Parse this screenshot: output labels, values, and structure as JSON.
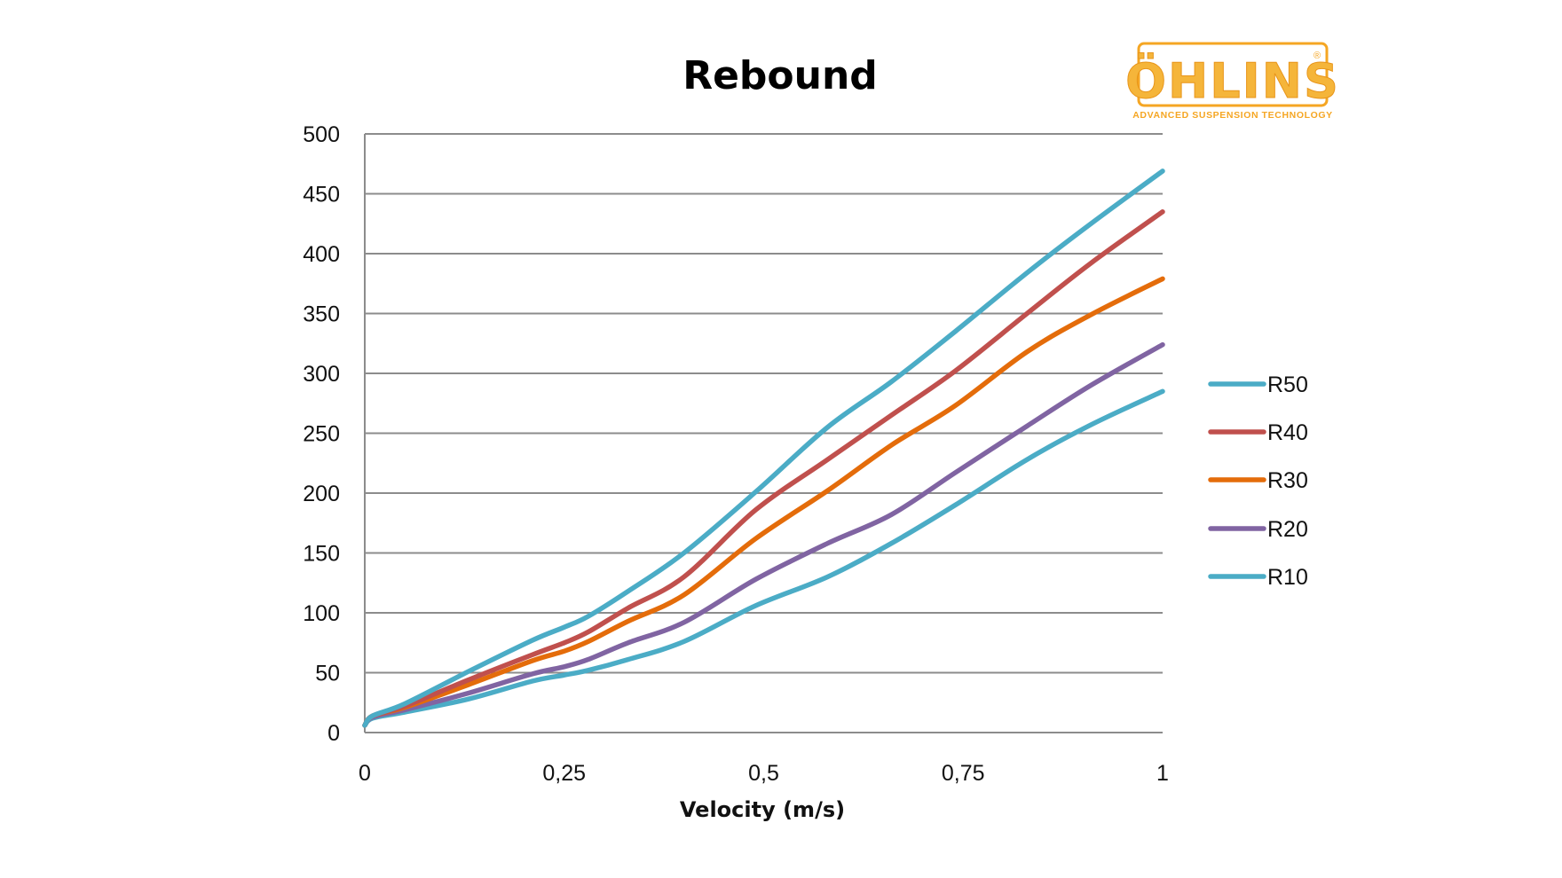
{
  "brand": {
    "name": "ÖHLINS",
    "registered_mark": "®",
    "tagline": "ADVANCED SUSPENSION TECHNOLOGY",
    "color": "#f5a623"
  },
  "chart_data": {
    "type": "line",
    "title": "Rebound",
    "xlabel": "Velocity (m/s)",
    "ylabel": "",
    "xlim": [
      0,
      1
    ],
    "ylim": [
      0,
      500
    ],
    "x_ticks": [
      "0",
      "0,25",
      "0,5",
      "0,75",
      "1"
    ],
    "x_tick_values": [
      0,
      0.25,
      0.5,
      0.75,
      1
    ],
    "y_ticks": [
      "0",
      "50",
      "100",
      "150",
      "200",
      "250",
      "300",
      "350",
      "400",
      "450",
      "500"
    ],
    "y_tick_values": [
      0,
      50,
      100,
      150,
      200,
      250,
      300,
      350,
      400,
      450,
      500
    ],
    "grid": "horizontal",
    "legend_position": "right",
    "x": [
      0,
      0.01,
      0.05,
      0.13,
      0.21,
      0.25,
      0.28,
      0.33,
      0.4,
      0.49,
      0.58,
      0.66,
      0.74,
      0.83,
      0.91,
      1.0
    ],
    "series": [
      {
        "name": "R50",
        "color": "#4bacc6",
        "values": [
          6,
          14,
          24,
          51,
          77,
          88,
          97,
          118,
          150,
          201,
          255,
          293,
          335,
          384,
          425,
          469
        ]
      },
      {
        "name": "R40",
        "color": "#c0504d",
        "values": [
          6,
          14,
          22,
          44,
          65,
          75,
          84,
          104,
          130,
          186,
          228,
          265,
          302,
          350,
          392,
          435
        ]
      },
      {
        "name": "R30",
        "color": "#e46c0a",
        "values": [
          6,
          14,
          21,
          40,
          60,
          68,
          76,
          93,
          115,
          162,
          202,
          240,
          273,
          318,
          349,
          379
        ]
      },
      {
        "name": "R20",
        "color": "#8064a2",
        "values": [
          6,
          13,
          19,
          33,
          49,
          55,
          61,
          75,
          92,
          128,
          158,
          182,
          217,
          256,
          290,
          324
        ]
      },
      {
        "name": "R10",
        "color": "#4bacc6",
        "values": [
          6,
          12,
          17,
          28,
          43,
          48,
          52,
          61,
          76,
          106,
          130,
          158,
          190,
          228,
          257,
          285
        ]
      }
    ]
  }
}
